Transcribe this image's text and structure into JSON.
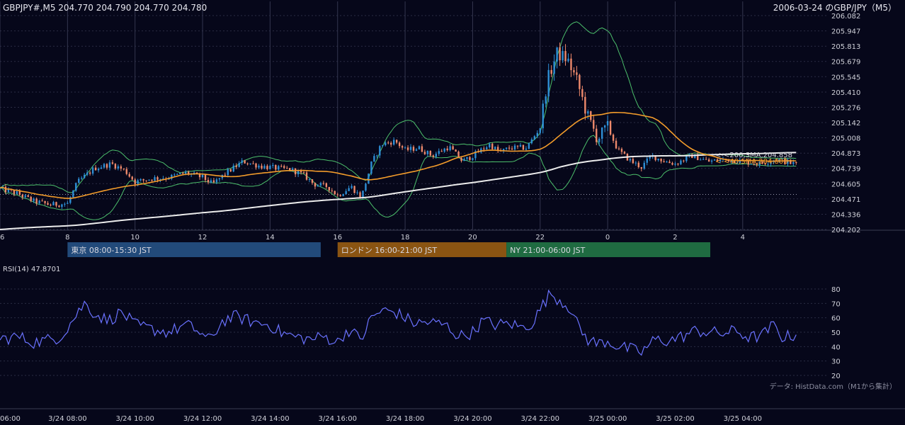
{
  "header": {
    "symbol_info": "GBPJPY#,M5 204.770 204.790 204.770 204.780",
    "title": "2006-03-24 のGBP/JPY（M5）"
  },
  "colors": {
    "background": "#06071a",
    "grid": "#2a2c44",
    "up": "#2e8fd6",
    "down": "#ef8a6c",
    "bollinger": "#4cbf6b",
    "sma40": "#f39c2b",
    "sma200": "#ececec",
    "rsi": "#6a72ff",
    "session_tokyo": "#224a7a",
    "session_london": "#8a5412",
    "session_ny": "#1f6b41"
  },
  "sessions": [
    {
      "label": "東京 08:00-15:30 JST",
      "color": "#224a7a",
      "start": 8.0,
      "end": 15.5
    },
    {
      "label": "ロンドン 16:00-21:00 JST",
      "color": "#8a5412",
      "start": 16.0,
      "end": 21.0
    },
    {
      "label": "NY 21:00-06:00 JST",
      "color": "#1f6b41",
      "start": 21.0,
      "end": 29.6
    }
  ],
  "sma_labels": {
    "sma200": "<-<200,SMA,204.858",
    "sma40": "<-<40,SMA,204.803"
  },
  "rsi_label": "RSI(14) 47.8701",
  "source_note": "データ: HistData.com（M1から集計）",
  "chart_data": {
    "type": "line",
    "title": "2006-03-24 のGBP/JPY（M5）",
    "price_axis": {
      "ticks": [
        204.202,
        204.336,
        204.471,
        204.605,
        204.739,
        204.873,
        205.008,
        205.142,
        205.276,
        205.41,
        205.545,
        205.679,
        205.813,
        205.947,
        206.082
      ],
      "range": [
        204.202,
        206.082
      ]
    },
    "time_axis": {
      "range": [
        6.0,
        30.5
      ],
      "upper_ticks": [
        {
          "label": "6",
          "x": 6
        },
        {
          "label": "8",
          "x": 8
        },
        {
          "label": "10",
          "x": 10
        },
        {
          "label": "12",
          "x": 12
        },
        {
          "label": "14",
          "x": 14
        },
        {
          "label": "16",
          "x": 16
        },
        {
          "label": "18",
          "x": 18
        },
        {
          "label": "20",
          "x": 20
        },
        {
          "label": "22",
          "x": 22
        },
        {
          "label": "0",
          "x": 24
        },
        {
          "label": "2",
          "x": 26
        },
        {
          "label": "4",
          "x": 28
        }
      ],
      "lower_ticks": [
        {
          "label": "06:00",
          "x": 6
        },
        {
          "label": "3/24 08:00",
          "x": 8
        },
        {
          "label": "3/24 10:00",
          "x": 10
        },
        {
          "label": "3/24 12:00",
          "x": 12
        },
        {
          "label": "3/24 14:00",
          "x": 14
        },
        {
          "label": "3/24 16:00",
          "x": 16
        },
        {
          "label": "3/24 18:00",
          "x": 18
        },
        {
          "label": "3/24 20:00",
          "x": 20
        },
        {
          "label": "3/24 22:00",
          "x": 22
        },
        {
          "label": "3/25 00:00",
          "x": 24
        },
        {
          "label": "3/25 02:00",
          "x": 26
        },
        {
          "label": "3/25 04:00",
          "x": 28
        }
      ]
    },
    "reference_line": 204.51,
    "price_anchors": [
      [
        6.0,
        204.56
      ],
      [
        6.5,
        204.52
      ],
      [
        7.0,
        204.45
      ],
      [
        7.5,
        204.42
      ],
      [
        8.0,
        204.43
      ],
      [
        8.3,
        204.62
      ],
      [
        8.8,
        204.74
      ],
      [
        9.3,
        204.78
      ],
      [
        9.7,
        204.72
      ],
      [
        10.0,
        204.62
      ],
      [
        10.5,
        204.65
      ],
      [
        11.0,
        204.66
      ],
      [
        11.5,
        204.7
      ],
      [
        12.0,
        204.66
      ],
      [
        12.3,
        204.6
      ],
      [
        12.7,
        204.7
      ],
      [
        13.2,
        204.8
      ],
      [
        13.7,
        204.76
      ],
      [
        14.2,
        204.74
      ],
      [
        14.6,
        204.73
      ],
      [
        15.0,
        204.68
      ],
      [
        15.3,
        204.6
      ],
      [
        15.7,
        204.58
      ],
      [
        16.0,
        204.5
      ],
      [
        16.4,
        204.58
      ],
      [
        16.7,
        204.48
      ],
      [
        17.0,
        204.78
      ],
      [
        17.3,
        204.95
      ],
      [
        17.7,
        204.98
      ],
      [
        18.0,
        204.9
      ],
      [
        18.4,
        204.92
      ],
      [
        18.8,
        204.85
      ],
      [
        19.3,
        204.93
      ],
      [
        19.7,
        204.8
      ],
      [
        20.0,
        204.85
      ],
      [
        20.5,
        204.95
      ],
      [
        20.8,
        204.88
      ],
      [
        21.1,
        204.92
      ],
      [
        21.6,
        204.92
      ],
      [
        22.0,
        205.1
      ],
      [
        22.2,
        205.5
      ],
      [
        22.5,
        205.75
      ],
      [
        22.8,
        205.7
      ],
      [
        23.1,
        205.5
      ],
      [
        23.4,
        205.2
      ],
      [
        23.7,
        205.0
      ],
      [
        24.0,
        205.1
      ],
      [
        24.3,
        204.9
      ],
      [
        24.7,
        204.8
      ],
      [
        25.0,
        204.75
      ],
      [
        25.3,
        204.85
      ],
      [
        25.7,
        204.8
      ],
      [
        26.0,
        204.78
      ],
      [
        26.5,
        204.85
      ],
      [
        27.0,
        204.8
      ],
      [
        27.5,
        204.82
      ],
      [
        28.0,
        204.8
      ],
      [
        28.5,
        204.78
      ],
      [
        29.0,
        204.82
      ],
      [
        29.5,
        204.78
      ]
    ],
    "rsi_axis": {
      "ticks": [
        20,
        30,
        40,
        50,
        60,
        70,
        80
      ],
      "range": [
        20,
        80
      ]
    },
    "rsi_anchors": [
      [
        6.0,
        45
      ],
      [
        6.5,
        47
      ],
      [
        7.0,
        43
      ],
      [
        7.5,
        45
      ],
      [
        7.8,
        47
      ],
      [
        8.2,
        60
      ],
      [
        8.5,
        70
      ],
      [
        8.8,
        63
      ],
      [
        9.2,
        58
      ],
      [
        9.6,
        64
      ],
      [
        10.0,
        55
      ],
      [
        10.5,
        52
      ],
      [
        11.0,
        50
      ],
      [
        11.5,
        55
      ],
      [
        11.8,
        52
      ],
      [
        12.2,
        44
      ],
      [
        12.6,
        58
      ],
      [
        13.0,
        61
      ],
      [
        13.5,
        57
      ],
      [
        14.0,
        55
      ],
      [
        14.3,
        50
      ],
      [
        14.7,
        47
      ],
      [
        15.2,
        45
      ],
      [
        15.6,
        47
      ],
      [
        16.0,
        43
      ],
      [
        16.3,
        52
      ],
      [
        16.7,
        45
      ],
      [
        17.0,
        60
      ],
      [
        17.3,
        65
      ],
      [
        17.7,
        64
      ],
      [
        18.0,
        60
      ],
      [
        18.3,
        56
      ],
      [
        18.7,
        57
      ],
      [
        19.2,
        55
      ],
      [
        19.6,
        47
      ],
      [
        20.0,
        50
      ],
      [
        20.3,
        58
      ],
      [
        20.7,
        55
      ],
      [
        21.1,
        56
      ],
      [
        21.5,
        53
      ],
      [
        21.8,
        57
      ],
      [
        22.0,
        66
      ],
      [
        22.3,
        77
      ],
      [
        22.6,
        72
      ],
      [
        22.9,
        67
      ],
      [
        23.1,
        55
      ],
      [
        23.4,
        45
      ],
      [
        23.7,
        42
      ],
      [
        24.0,
        44
      ],
      [
        24.3,
        40
      ],
      [
        24.7,
        38
      ],
      [
        25.0,
        36
      ],
      [
        25.4,
        45
      ],
      [
        25.8,
        44
      ],
      [
        26.2,
        47
      ],
      [
        26.6,
        51
      ],
      [
        27.0,
        50
      ],
      [
        27.4,
        49
      ],
      [
        27.8,
        51
      ],
      [
        28.2,
        46
      ],
      [
        28.6,
        48
      ],
      [
        28.9,
        55
      ],
      [
        29.2,
        46
      ],
      [
        29.5,
        48
      ]
    ]
  }
}
